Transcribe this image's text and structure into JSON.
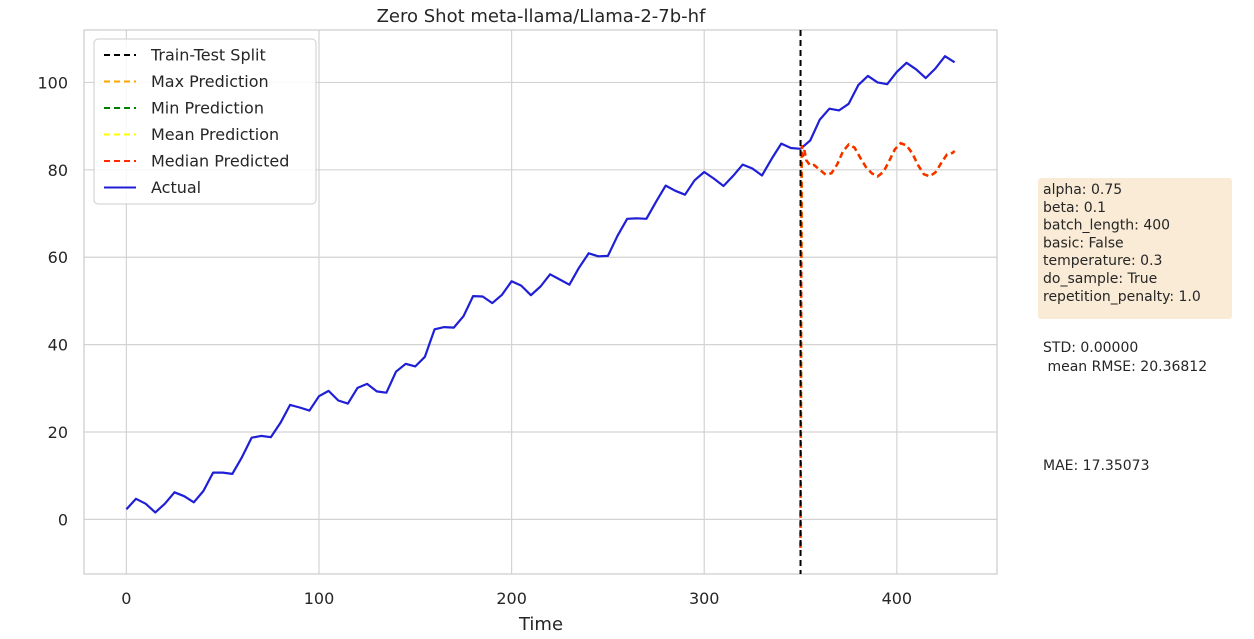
{
  "chart_data": {
    "type": "line",
    "title": "Zero Shot meta-llama/Llama-2-7b-hf",
    "xlabel": "Time",
    "ylabel": "",
    "xlim": [
      -22,
      452
    ],
    "ylim": [
      -12.5,
      112
    ],
    "xticks": [
      0,
      100,
      200,
      300,
      400
    ],
    "yticks": [
      0,
      20,
      40,
      60,
      80,
      100
    ],
    "grid": true,
    "legend_position": "top-left",
    "train_test_split": 350,
    "series": [
      {
        "name": "Train-Test Split",
        "color": "#000000",
        "dashed": true,
        "kind": "vline",
        "x": 350,
        "y_range": [
          -12.5,
          112
        ]
      },
      {
        "name": "Max Prediction",
        "color": "#ffa500",
        "dashed": true,
        "kind": "forecast"
      },
      {
        "name": "Min Prediction",
        "color": "#008000",
        "dashed": true,
        "kind": "forecast"
      },
      {
        "name": "Mean Prediction",
        "color": "#ffff00",
        "dashed": true,
        "kind": "forecast"
      },
      {
        "name": "Median Predicted",
        "color": "#ff2a00",
        "dashed": true,
        "kind": "forecast"
      },
      {
        "name": "Actual",
        "color": "#1f1fd6",
        "dashed": false,
        "kind": "actual"
      }
    ],
    "actual": {
      "x": [
        0,
        5,
        10,
        15,
        20,
        25,
        30,
        35,
        40,
        45,
        50,
        55,
        60,
        65,
        70,
        75,
        80,
        85,
        90,
        95,
        100,
        105,
        110,
        115,
        120,
        125,
        130,
        135,
        140,
        145,
        150,
        155,
        160,
        165,
        170,
        175,
        180,
        185,
        190,
        195,
        200,
        205,
        210,
        215,
        220,
        225,
        230,
        235,
        240,
        245,
        250,
        255,
        260,
        265,
        270,
        275,
        280,
        285,
        290,
        295,
        300,
        305,
        310,
        315,
        320,
        325,
        330,
        335,
        340,
        345,
        350,
        355,
        360,
        365,
        370,
        375,
        380,
        385,
        390,
        395,
        400,
        405,
        410,
        415,
        420,
        425,
        430
      ],
      "y": [
        2.3,
        4.7,
        3.6,
        1.6,
        3.6,
        6.2,
        5.3,
        3.9,
        6.5,
        10.7,
        10.7,
        10.4,
        14.2,
        18.7,
        19.1,
        18.8,
        22.1,
        26.2,
        25.6,
        24.9,
        28.2,
        29.4,
        27.2,
        26.5,
        30.1,
        31.0,
        29.3,
        29.0,
        33.8,
        35.6,
        35.0,
        37.2,
        43.5,
        44.0,
        43.9,
        46.5,
        51.1,
        51.0,
        49.5,
        51.4,
        54.5,
        53.5,
        51.3,
        53.3,
        56.1,
        54.9,
        53.7,
        57.6,
        60.9,
        60.2,
        60.3,
        64.9,
        68.8,
        68.9,
        68.8,
        72.7,
        76.4,
        75.2,
        74.3,
        77.6,
        79.5,
        78.0,
        76.3,
        78.6,
        81.2,
        80.3,
        78.7,
        82.5,
        86.0,
        85.0,
        84.8,
        86.7,
        91.5,
        94.0,
        93.6,
        95.1,
        99.4,
        101.5,
        100.0,
        99.6,
        102.4,
        104.5,
        103.0,
        101.0,
        103.2,
        106.0,
        104.6
      ]
    },
    "forecast": {
      "x": [
        350,
        350.6,
        351.2,
        352,
        353,
        355,
        357,
        360,
        363,
        366,
        369,
        372,
        375,
        378,
        381,
        384,
        387,
        390,
        393,
        396,
        399,
        402,
        405,
        408,
        411,
        414,
        417,
        420,
        423,
        426,
        429,
        430
      ],
      "y": [
        -6.5,
        85.6,
        83.0,
        84.5,
        82.2,
        81.0,
        81.1,
        80.0,
        78.9,
        79.2,
        81.2,
        84.2,
        85.8,
        85.1,
        82.8,
        80.6,
        79.2,
        78.5,
        79.5,
        82.0,
        84.7,
        86.1,
        85.6,
        83.8,
        81.1,
        79.0,
        78.5,
        79.4,
        81.5,
        83.5,
        83.9,
        84.3
      ]
    },
    "side_panel": {
      "params": [
        "alpha: 0.75",
        "beta: 0.1",
        "batch_length: 400",
        "basic: False",
        "temperature: 0.3",
        "do_sample: True",
        "repetition_penalty: 1.0"
      ],
      "std": "STD: 0.00000",
      "rmse": " mean RMSE: 20.36812",
      "mae": "MAE: 17.35073",
      "params_box_color": "#f9ebd5"
    }
  }
}
